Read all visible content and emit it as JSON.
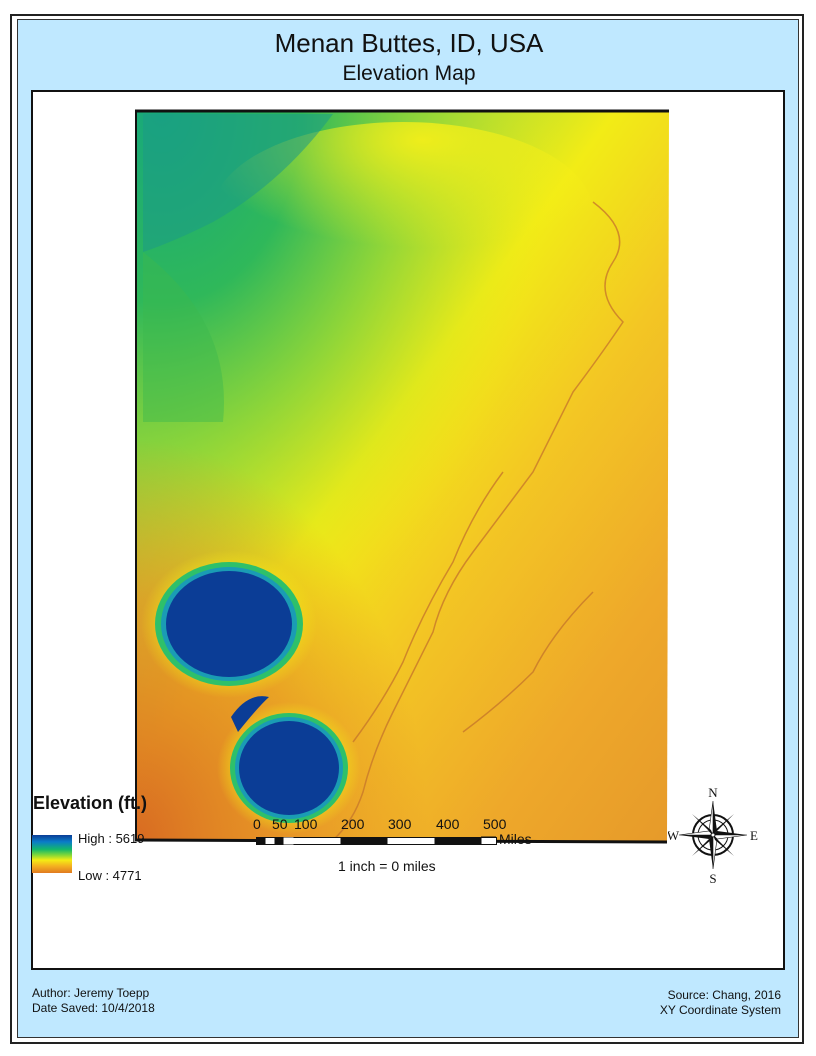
{
  "map": {
    "title": "Menan Buttes, ID, USA",
    "subtitle": "Elevation Map"
  },
  "legend": {
    "title": "Elevation (ft.)",
    "high_label": "High : 5619",
    "low_label": "Low : 4771",
    "ramp_colors": [
      "#0a3c96",
      "#13b86a",
      "#f4ec14",
      "#e07a20"
    ]
  },
  "scale": {
    "ticks": [
      "0",
      "50",
      "100",
      "200",
      "300",
      "400",
      "500"
    ],
    "unit": "Miles",
    "note": "1 inch = 0 miles"
  },
  "compass": {
    "n": "N",
    "s": "S",
    "e": "E",
    "w": "W"
  },
  "footer": {
    "author": "Author:  Jeremy Toepp",
    "date_saved": "Date Saved:  10/4/2018",
    "source": "Source:  Chang, 2016",
    "coordinate_system": "XY Coordinate System"
  }
}
